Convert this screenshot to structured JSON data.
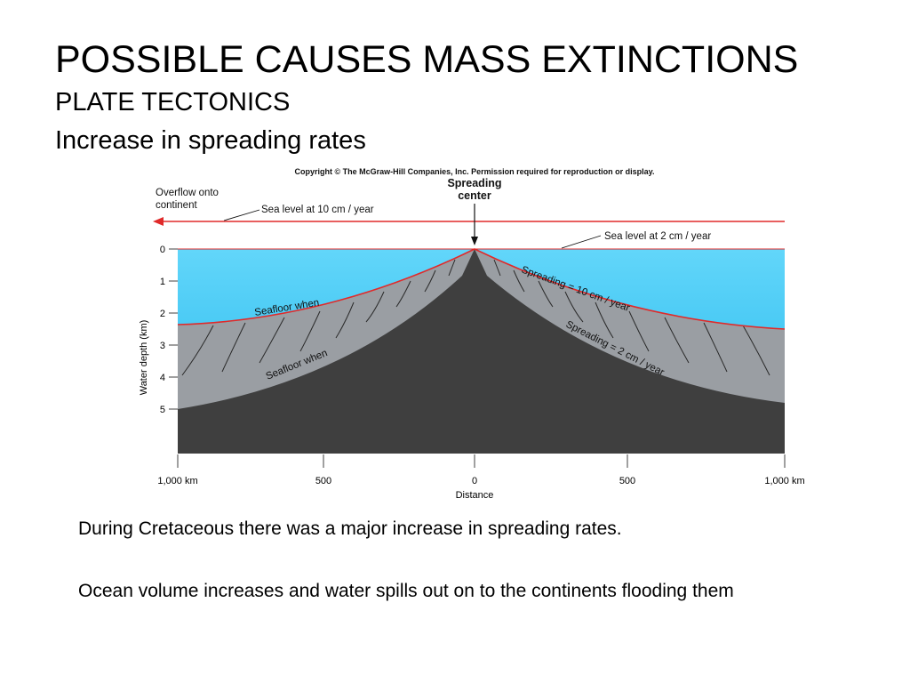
{
  "slide": {
    "title": "POSSIBLE CAUSES MASS EXTINCTIONS",
    "subtitle": "PLATE TECTONICS",
    "subtitle2": "Increase in spreading rates"
  },
  "figure": {
    "copyright": "Copyright © The McGraw-Hill Companies, Inc. Permission required for reproduction or display.",
    "overflow_label_line1": "Overflow onto",
    "overflow_label_line2": "continent",
    "sea_level_fast": "Sea level at 10 cm / year",
    "sea_level_slow": "Sea level at 2 cm / year",
    "spreading_center_line1": "Spreading",
    "spreading_center_line2": "center",
    "spreading_fast": "Spreading = 10 cm / year",
    "spreading_slow": "Spreading = 2 cm / year",
    "seafloor_fast": "Seafloor when",
    "seafloor_slow": "Seafloor when",
    "y_axis_label": "Water depth (km)",
    "y_ticks": [
      "0",
      "1",
      "2",
      "3",
      "4",
      "5"
    ],
    "x_ticks": [
      "1,000 km",
      "500",
      "0",
      "500",
      "1,000 km"
    ],
    "x_axis_label": "Distance",
    "colors": {
      "water": "#34c3f0",
      "water_top": "#5fd4f8",
      "seafloor_young": "#9a9ea3",
      "crust": "#3f3f3f",
      "sea_level_line": "#e02a2a"
    }
  },
  "bullets": [
    "During Cretaceous there was a major increase in spreading rates.",
    "Ocean volume increases and water spills out on to the continents flooding them"
  ]
}
